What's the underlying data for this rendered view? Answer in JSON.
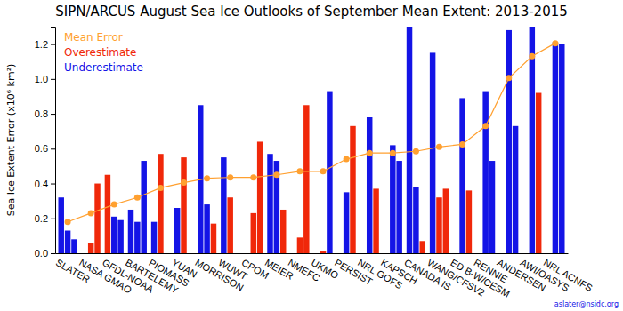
{
  "chart_data": {
    "type": "bar",
    "title": "SIPN/ARCUS August Sea Ice Outlooks of September Mean Extent: 2013-2015",
    "y_label": "Sea Ice Extent Error (x10⁶ km²)",
    "categories": [
      "SLATER",
      "NASA GMAO",
      "GFDL-NOAA",
      "BARTELEMY",
      "PIOMASS",
      "YUAN",
      "MORRISON",
      "WUWT",
      "CPOM",
      "MEIER",
      "NMEFC",
      "UKMO",
      "PERSIST",
      "NRL GOFS",
      "KAPSCH",
      "CANADA IS",
      "WANG/CFSV2",
      "ED B-W/CESM",
      "RENNIE",
      "ANDERSEN",
      "AWI/OASYS",
      "NRL ACNFS"
    ],
    "series": [
      {
        "name": "Mean Error",
        "type": "line",
        "color": "#ffa030",
        "marker": "circle",
        "values": [
          0.18,
          0.23,
          0.28,
          0.32,
          0.375,
          0.405,
          0.43,
          0.435,
          0.435,
          0.45,
          0.47,
          0.47,
          0.54,
          0.575,
          0.575,
          0.585,
          0.61,
          0.625,
          0.73,
          1.005,
          1.13,
          1.205
        ]
      },
      {
        "name": "Overestimate",
        "type": "bar",
        "color": "#f0280a",
        "values": [
          [
            null,
            null,
            null
          ],
          [
            null,
            0.06,
            0.4
          ],
          [
            0.45,
            null,
            null
          ],
          [
            null,
            null,
            null
          ],
          [
            null,
            0.57,
            null
          ],
          [
            null,
            0.55,
            null
          ],
          [
            null,
            null,
            0.17
          ],
          [
            null,
            0.32,
            null
          ],
          [
            null,
            0.23,
            0.64
          ],
          [
            null,
            null,
            0.25
          ],
          [
            null,
            0.09,
            0.85
          ],
          [
            null,
            0.01,
            null
          ],
          [
            null,
            null,
            0.73
          ],
          [
            null,
            null,
            0.37
          ],
          [
            null,
            null,
            null
          ],
          [
            null,
            null,
            0.07
          ],
          [
            null,
            0.32,
            0.37
          ],
          [
            null,
            null,
            0.36
          ],
          [
            null,
            null,
            null
          ],
          [
            null,
            null,
            null
          ],
          [
            null,
            null,
            0.92
          ],
          [
            null,
            null,
            null
          ]
        ]
      },
      {
        "name": "Underestimate",
        "type": "bar",
        "color": "#1414e6",
        "values": [
          [
            0.32,
            0.13,
            0.08
          ],
          [
            null,
            null,
            null
          ],
          [
            null,
            0.21,
            0.19
          ],
          [
            0.25,
            0.18,
            0.53
          ],
          [
            0.18,
            null,
            null
          ],
          [
            0.26,
            null,
            null
          ],
          [
            0.85,
            0.28,
            null
          ],
          [
            0.55,
            null,
            null
          ],
          [
            null,
            null,
            null
          ],
          [
            0.57,
            0.53,
            null
          ],
          [
            null,
            null,
            null
          ],
          [
            null,
            null,
            0.93
          ],
          [
            null,
            0.35,
            null
          ],
          [
            null,
            0.78,
            null
          ],
          [
            null,
            0.62,
            0.53
          ],
          [
            1.31,
            0.38,
            null
          ],
          [
            1.15,
            null,
            null
          ],
          [
            null,
            0.89,
            null
          ],
          [
            null,
            0.93,
            0.53
          ],
          [
            null,
            1.28,
            0.73
          ],
          [
            null,
            1.34,
            null
          ],
          [
            null,
            1.21,
            1.2
          ]
        ]
      }
    ],
    "ylim": [
      0,
      1.3
    ],
    "yticks": [
      {
        "value": 0,
        "label": "0.0"
      },
      {
        "value": 0.2,
        "label": "0.2"
      },
      {
        "value": 0.4,
        "label": "0.4"
      },
      {
        "value": 0.6,
        "label": "0.6"
      },
      {
        "value": 0.8,
        "label": "0.8"
      },
      {
        "value": 1,
        "label": "1.0"
      },
      {
        "value": 1.2,
        "label": "1.2"
      }
    ],
    "grid": false,
    "legend": "upper left",
    "annotations": [
      "aslater@nsidc.org"
    ]
  }
}
